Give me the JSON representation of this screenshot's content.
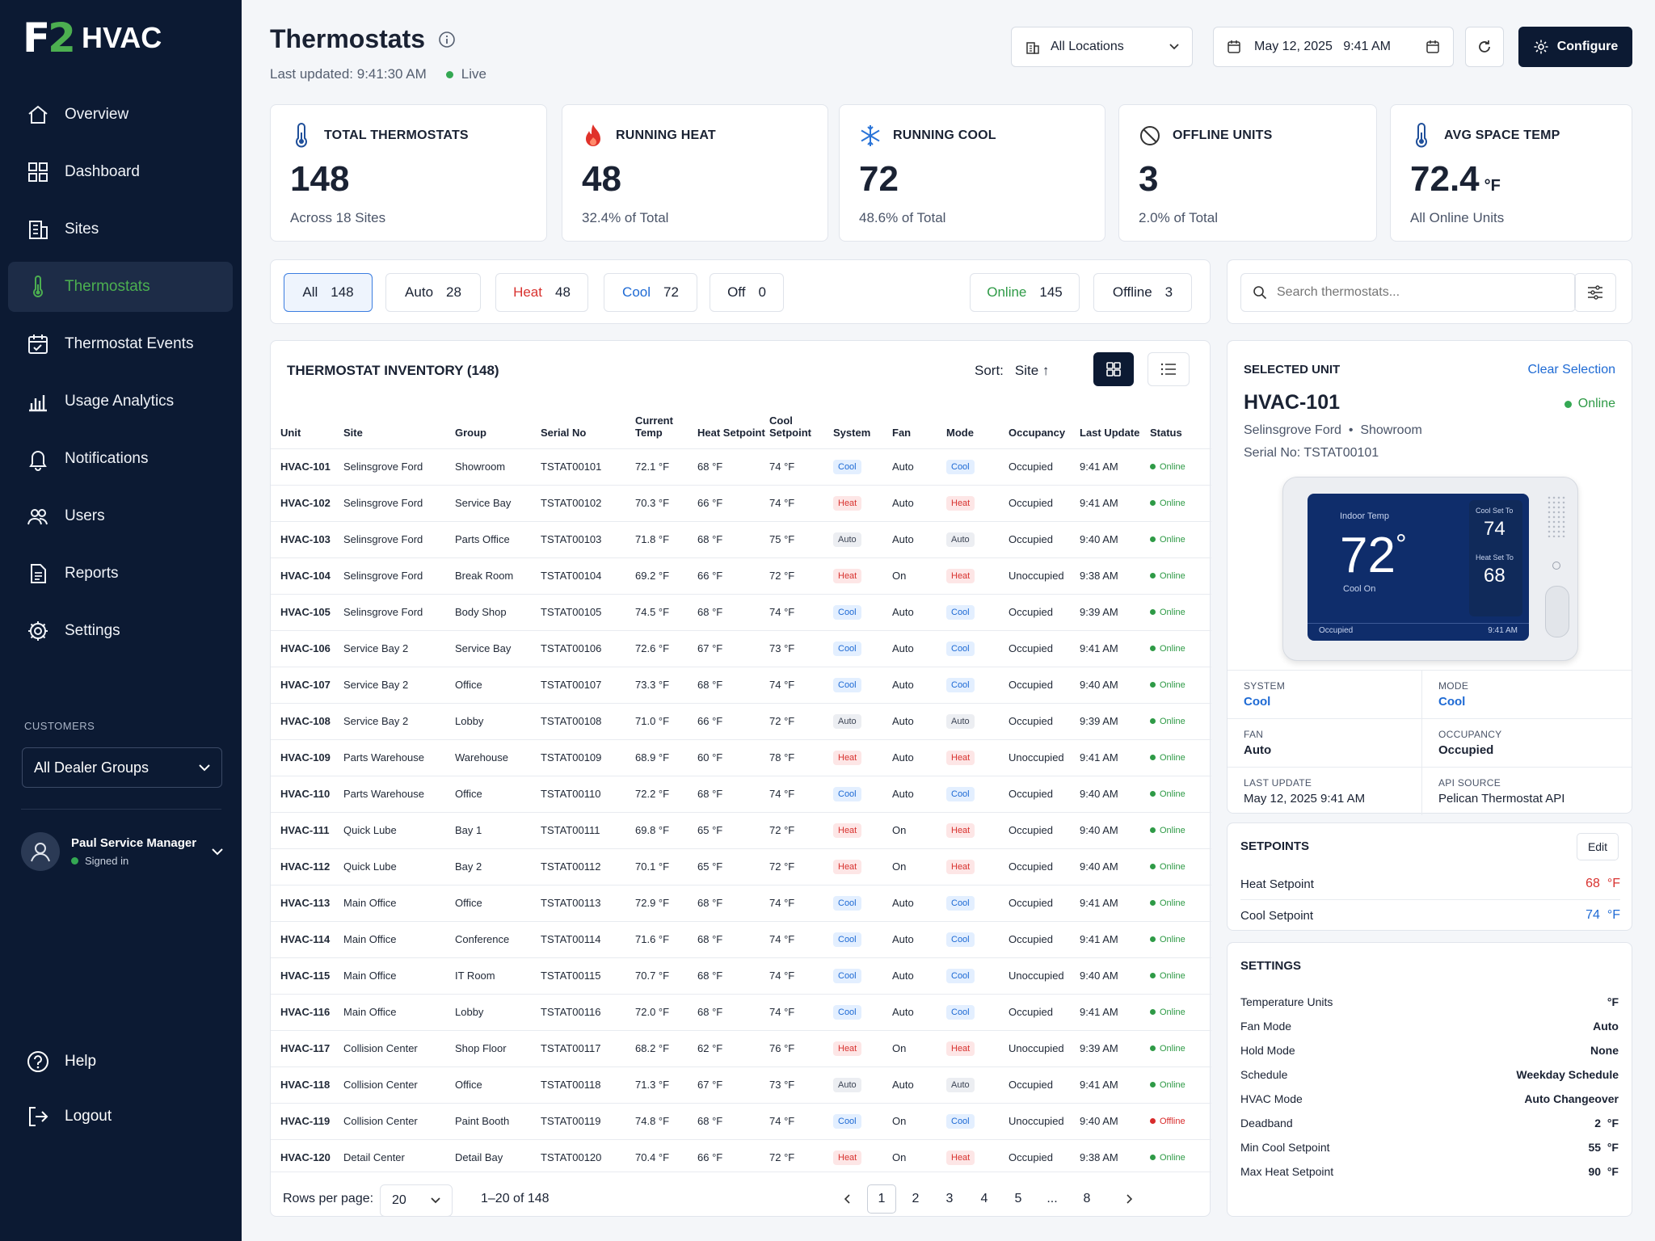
{
  "app": {
    "logo_mark": "F2",
    "logo_text": "HVAC"
  },
  "sidebar": {
    "items": [
      {
        "label": "Overview",
        "icon": "home-icon"
      },
      {
        "label": "Dashboard",
        "icon": "grid-icon"
      },
      {
        "label": "Sites",
        "icon": "building-icon"
      },
      {
        "label": "Thermostats",
        "icon": "thermometer-icon",
        "active": true
      },
      {
        "label": "Thermostat Events",
        "icon": "calendar-icon"
      },
      {
        "label": "Usage Analytics",
        "icon": "bar-chart-icon"
      },
      {
        "label": "Notifications",
        "icon": "bell-icon"
      },
      {
        "label": "Users",
        "icon": "users-icon"
      },
      {
        "label": "Reports",
        "icon": "document-icon"
      },
      {
        "label": "Settings",
        "icon": "gear-icon"
      }
    ],
    "customers_label": "CUSTOMERS",
    "customers_select": "All Dealer Groups",
    "user_name": "Paul Service Manager",
    "user_status": "Signed in",
    "help_label": "Help",
    "logout_label": "Logout"
  },
  "header": {
    "title": "Thermostats",
    "last_updated": "Last updated: 9:41:30 AM",
    "live": "Live",
    "location_select": "All Locations",
    "datetime": "May 12, 2025   9:41 AM",
    "configure": "Configure"
  },
  "stats": [
    {
      "label": "TOTAL THERMOSTATS",
      "value": "148",
      "sub": "Across 18 Sites",
      "icon": "thermometer-icon"
    },
    {
      "label": "RUNNING HEAT",
      "value": "48",
      "sub": "32.4% of Total",
      "icon": "flame-icon"
    },
    {
      "label": "RUNNING COOL",
      "value": "72",
      "sub": "48.6% of Total",
      "icon": "snowflake-icon"
    },
    {
      "label": "OFFLINE UNITS",
      "value": "3",
      "sub": "2.0% of Total",
      "icon": "ban-icon"
    },
    {
      "label": "AVG SPACE TEMP",
      "value": "72.4",
      "unit": "°F",
      "sub": "All Online Units",
      "icon": "thermometer-icon"
    }
  ],
  "filters": [
    {
      "label": "All",
      "count": "148"
    },
    {
      "label": "Auto",
      "count": "28"
    },
    {
      "label": "Heat",
      "count": "48"
    },
    {
      "label": "Cool",
      "count": "72"
    },
    {
      "label": "Off",
      "count": "0"
    },
    {
      "label": "Online",
      "count": "145"
    },
    {
      "label": "Offline",
      "count": "3"
    }
  ],
  "search": {
    "placeholder": "Search thermostats..."
  },
  "inventory": {
    "title": "THERMOSTAT INVENTORY (148)",
    "sort_label": "Sort:",
    "sort_value": "Site ↑",
    "columns": [
      "Unit",
      "Site",
      "Group",
      "Serial No",
      "Current Temp",
      "Heat Setpoint",
      "Cool Setpoint",
      "System",
      "Fan",
      "Mode",
      "Occupancy",
      "Last Update",
      "Status"
    ],
    "rows": [
      [
        "HVAC-101",
        "Selinsgrove Ford",
        "Showroom",
        "TSTAT00101",
        "72.1 °F",
        "68 °F",
        "74 °F",
        "Cool",
        "Auto",
        "Cool",
        "Occupied",
        "9:41 AM",
        "Online"
      ],
      [
        "HVAC-102",
        "Selinsgrove Ford",
        "Service Bay",
        "TSTAT00102",
        "70.3 °F",
        "66 °F",
        "74 °F",
        "Heat",
        "Auto",
        "Heat",
        "Occupied",
        "9:41 AM",
        "Online"
      ],
      [
        "HVAC-103",
        "Selinsgrove Ford",
        "Parts Office",
        "TSTAT00103",
        "71.8 °F",
        "68 °F",
        "75 °F",
        "Auto",
        "Auto",
        "Auto",
        "Occupied",
        "9:40 AM",
        "Online"
      ],
      [
        "HVAC-104",
        "Selinsgrove Ford",
        "Break Room",
        "TSTAT00104",
        "69.2 °F",
        "66 °F",
        "72 °F",
        "Heat",
        "On",
        "Heat",
        "Unoccupied",
        "9:38 AM",
        "Online"
      ],
      [
        "HVAC-105",
        "Selinsgrove Ford",
        "Body Shop",
        "TSTAT00105",
        "74.5 °F",
        "68 °F",
        "74 °F",
        "Cool",
        "Auto",
        "Cool",
        "Occupied",
        "9:39 AM",
        "Online"
      ],
      [
        "HVAC-106",
        "Service Bay 2",
        "Service Bay",
        "TSTAT00106",
        "72.6 °F",
        "67 °F",
        "73 °F",
        "Cool",
        "Auto",
        "Cool",
        "Occupied",
        "9:41 AM",
        "Online"
      ],
      [
        "HVAC-107",
        "Service Bay 2",
        "Office",
        "TSTAT00107",
        "73.3 °F",
        "68 °F",
        "74 °F",
        "Cool",
        "Auto",
        "Cool",
        "Occupied",
        "9:40 AM",
        "Online"
      ],
      [
        "HVAC-108",
        "Service Bay 2",
        "Lobby",
        "TSTAT00108",
        "71.0 °F",
        "66 °F",
        "72 °F",
        "Auto",
        "Auto",
        "Auto",
        "Occupied",
        "9:39 AM",
        "Online"
      ],
      [
        "HVAC-109",
        "Parts Warehouse",
        "Warehouse",
        "TSTAT00109",
        "68.9 °F",
        "60 °F",
        "78 °F",
        "Heat",
        "Auto",
        "Heat",
        "Unoccupied",
        "9:41 AM",
        "Online"
      ],
      [
        "HVAC-110",
        "Parts Warehouse",
        "Office",
        "TSTAT00110",
        "72.2 °F",
        "68 °F",
        "74 °F",
        "Cool",
        "Auto",
        "Cool",
        "Occupied",
        "9:40 AM",
        "Online"
      ],
      [
        "HVAC-111",
        "Quick Lube",
        "Bay 1",
        "TSTAT00111",
        "69.8 °F",
        "65 °F",
        "72 °F",
        "Heat",
        "On",
        "Heat",
        "Occupied",
        "9:40 AM",
        "Online"
      ],
      [
        "HVAC-112",
        "Quick Lube",
        "Bay 2",
        "TSTAT00112",
        "70.1 °F",
        "65 °F",
        "72 °F",
        "Heat",
        "On",
        "Heat",
        "Occupied",
        "9:40 AM",
        "Online"
      ],
      [
        "HVAC-113",
        "Main Office",
        "Office",
        "TSTAT00113",
        "72.9 °F",
        "68 °F",
        "74 °F",
        "Cool",
        "Auto",
        "Cool",
        "Occupied",
        "9:41 AM",
        "Online"
      ],
      [
        "HVAC-114",
        "Main Office",
        "Conference",
        "TSTAT00114",
        "71.6 °F",
        "68 °F",
        "74 °F",
        "Cool",
        "Auto",
        "Cool",
        "Occupied",
        "9:41 AM",
        "Online"
      ],
      [
        "HVAC-115",
        "Main Office",
        "IT Room",
        "TSTAT00115",
        "70.7 °F",
        "68 °F",
        "74 °F",
        "Cool",
        "Auto",
        "Cool",
        "Unoccupied",
        "9:40 AM",
        "Online"
      ],
      [
        "HVAC-116",
        "Main Office",
        "Lobby",
        "TSTAT00116",
        "72.0 °F",
        "68 °F",
        "74 °F",
        "Cool",
        "Auto",
        "Cool",
        "Occupied",
        "9:41 AM",
        "Online"
      ],
      [
        "HVAC-117",
        "Collision Center",
        "Shop Floor",
        "TSTAT00117",
        "68.2 °F",
        "62 °F",
        "76 °F",
        "Heat",
        "On",
        "Heat",
        "Unoccupied",
        "9:39 AM",
        "Online"
      ],
      [
        "HVAC-118",
        "Collision Center",
        "Office",
        "TSTAT00118",
        "71.3 °F",
        "67 °F",
        "73 °F",
        "Auto",
        "Auto",
        "Auto",
        "Occupied",
        "9:41 AM",
        "Online"
      ],
      [
        "HVAC-119",
        "Collision Center",
        "Paint Booth",
        "TSTAT00119",
        "74.8 °F",
        "68 °F",
        "74 °F",
        "Cool",
        "On",
        "Cool",
        "Unoccupied",
        "9:40 AM",
        "Offline"
      ],
      [
        "HVAC-120",
        "Detail Center",
        "Detail Bay",
        "TSTAT00120",
        "70.4 °F",
        "66 °F",
        "72 °F",
        "Heat",
        "On",
        "Heat",
        "Occupied",
        "9:38 AM",
        "Online"
      ]
    ],
    "rows_per_page_label": "Rows per page:",
    "rows_per_page": "20",
    "range": "1–20 of 148",
    "pages": [
      "1",
      "2",
      "3",
      "4",
      "5",
      "...",
      "8"
    ]
  },
  "selected": {
    "label": "SELECTED UNIT",
    "clear": "Clear Selection",
    "unit": "HVAC-101",
    "status": "Online",
    "site_group": "Selinsgrove Ford  •  Showroom",
    "serial": "Serial No: TSTAT00101",
    "device": {
      "indoor_label": "Indoor Temp",
      "temp": "72",
      "deg": "°",
      "state": "Cool On",
      "cool_set_label": "Cool Set To",
      "cool_set": "74",
      "heat_set_label": "Heat Set To",
      "heat_set": "68",
      "occupancy": "Occupied",
      "time": "9:41 AM"
    },
    "fields": [
      {
        "label": "SYSTEM",
        "value": "Cool"
      },
      {
        "label": "MODE",
        "value": "Cool"
      },
      {
        "label": "FAN",
        "value": "Auto"
      },
      {
        "label": "OCCUPANCY",
        "value": "Occupied"
      },
      {
        "label": "LAST UPDATE",
        "value": "May 12, 2025  9:41 AM"
      },
      {
        "label": "API SOURCE",
        "value": "Pelican Thermostat API"
      }
    ]
  },
  "setpoints": {
    "title": "SETPOINTS",
    "edit": "Edit",
    "heat_label": "Heat Setpoint",
    "heat_value": "68  °F",
    "cool_label": "Cool Setpoint",
    "cool_value": "74  °F"
  },
  "settings": {
    "title": "SETTINGS",
    "rows": [
      {
        "label": "Temperature Units",
        "value": "°F"
      },
      {
        "label": "Fan Mode",
        "value": "Auto"
      },
      {
        "label": "Hold Mode",
        "value": "None"
      },
      {
        "label": "Schedule",
        "value": "Weekday Schedule"
      },
      {
        "label": "HVAC Mode",
        "value": "Auto Changeover"
      },
      {
        "label": "Deadband",
        "value": "2  °F"
      },
      {
        "label": "Min Cool Setpoint",
        "value": "55  °F"
      },
      {
        "label": "Max Heat Setpoint",
        "value": "90  °F"
      }
    ]
  },
  "colors": {
    "accent": "#4caf50",
    "sidebar": "#0c1a33",
    "heat": "#d8322f",
    "cool": "#1e6ad4",
    "online": "#2e9a46",
    "offline": "#d82b2b"
  }
}
